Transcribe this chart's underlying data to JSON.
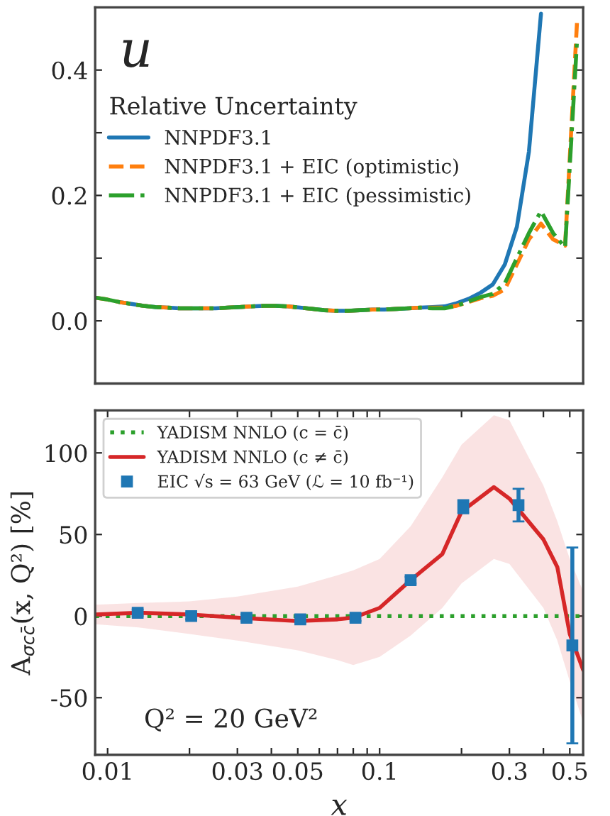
{
  "chart_data": [
    {
      "type": "line",
      "categories": [
        null,
        null,
        null,
        null,
        null,
        null,
        null,
        null,
        null,
        null,
        null,
        null,
        null,
        null,
        null,
        null,
        null,
        null,
        null,
        null,
        null,
        null,
        null,
        null,
        null,
        null,
        null,
        null,
        null,
        null,
        null,
        null,
        null,
        null,
        null,
        null,
        null,
        null,
        null,
        null,
        null
      ],
      "ylim": [
        -0.1,
        0.5
      ],
      "yticks": [
        {
          "value": 0,
          "label": "0.0"
        },
        {
          "value": 0.1,
          "label": null
        },
        0.2,
        {
          "value": 0.3,
          "label": null
        },
        0.4
      ],
      "tick_labels": "y",
      "legend": "top left",
      "legend_title": "Relative Uncertainty",
      "grid": false,
      "annotations": [
        "u"
      ],
      "series": [
        {
          "name": "NNPDF3.1",
          "color": "#1f77b4",
          "line_style": "solid",
          "values": [
            null,
            null,
            0.03,
            0.027,
            0.024,
            0.022,
            0.021,
            0.02,
            0.02,
            0.02,
            0.02,
            0.021,
            0.022,
            0.023,
            0.024,
            0.024,
            0.023,
            0.021,
            0.019,
            0.017,
            0.016,
            0.016,
            0.017,
            0.018,
            0.018,
            0.019,
            0.02,
            0.021,
            0.022,
            0.023,
            0.028,
            0.035,
            0.045,
            0.058,
            0.09,
            0.15,
            0.27,
            0.49,
            null,
            null,
            null
          ]
        },
        {
          "name": "NNPDF3.1 + EIC (optimistic)",
          "color": "#ff7f0e",
          "line_style": "dashed",
          "values": [
            0.037,
            0.034,
            0.03,
            0.027,
            0.024,
            0.022,
            0.021,
            0.02,
            0.02,
            0.02,
            0.02,
            0.021,
            0.022,
            0.023,
            0.024,
            0.024,
            0.023,
            0.021,
            0.019,
            0.017,
            0.016,
            0.016,
            0.017,
            0.018,
            0.018,
            0.019,
            0.02,
            0.021,
            0.021,
            0.021,
            0.024,
            0.03,
            0.036,
            0.04,
            0.05,
            0.09,
            0.13,
            0.155,
            0.13,
            0.12,
            0.48
          ]
        },
        {
          "name": "NNPDF3.1 + EIC (pessimistic)",
          "color": "#2ca02c",
          "line_style": "dashdot",
          "values": [
            0.037,
            0.034,
            0.03,
            0.027,
            0.024,
            0.022,
            0.021,
            0.02,
            0.02,
            0.02,
            0.02,
            0.021,
            0.022,
            0.023,
            0.024,
            0.024,
            0.023,
            0.021,
            0.019,
            0.017,
            0.016,
            0.016,
            0.017,
            0.018,
            0.018,
            0.019,
            0.02,
            0.021,
            0.02,
            0.02,
            0.024,
            0.031,
            0.038,
            0.043,
            0.06,
            0.1,
            0.14,
            0.175,
            0.14,
            0.117,
            0.45
          ]
        }
      ]
    },
    {
      "type": "line",
      "log": "x",
      "xlim": [
        0.009,
        0.56
      ],
      "ylim": [
        -85,
        126
      ],
      "xticks": [
        0.01,
        {
          "value": 0.02,
          "label": null
        },
        0.03,
        {
          "value": 0.04,
          "label": null
        },
        0.05,
        {
          "value": 0.06,
          "label": null
        },
        {
          "value": 0.07,
          "label": null
        },
        {
          "value": 0.08,
          "label": null
        },
        {
          "value": 0.09,
          "label": null
        },
        0.1,
        {
          "value": 0.2,
          "label": null
        },
        0.3,
        {
          "value": 0.4,
          "label": null
        },
        0.5
      ],
      "yticks": [
        -50,
        0,
        50,
        100
      ],
      "xlabel": "x",
      "ylabel": "A$_{σcc̄}$(x, Q²) [%]",
      "legend": "top left",
      "grid": false,
      "annotations": [
        "Q² = 20 GeV²"
      ],
      "series": [
        {
          "name": "YADISM NNLO (c = c̄)",
          "type": "line",
          "color": "#2ca02c",
          "line_style": "dotted",
          "x": [
            0.009,
            0.56
          ],
          "values": [
            0,
            0
          ]
        },
        {
          "name": "YADISM NNLO (c ≠ c̄)",
          "type": "line",
          "color": "#d62728",
          "line_style": "solid",
          "x": [
            0.009,
            0.013,
            0.02,
            0.03,
            0.05,
            0.07,
            0.08,
            0.1,
            0.13,
            0.17,
            0.2,
            0.263,
            0.3,
            0.4,
            0.45,
            0.5,
            0.56
          ],
          "values": [
            1,
            2,
            1,
            -1,
            -3,
            -2,
            -1,
            5,
            22,
            38,
            64,
            79,
            72,
            47,
            30,
            -11,
            -33
          ],
          "upper": [
            7,
            8,
            9,
            12,
            18,
            25,
            28,
            35,
            55,
            85,
            105,
            123,
            120,
            80,
            58,
            35,
            15
          ],
          "lower": [
            -5,
            -7,
            -11,
            -15,
            -21,
            -27,
            -30,
            -25,
            -12,
            5,
            20,
            35,
            32,
            5,
            -15,
            -40,
            -65
          ]
        },
        {
          "name": "EIC √s = 63 GeV (ℒ = 10 fb⁻¹)",
          "type": "scatter",
          "color": "#1f77b4",
          "marker": "square",
          "x": [
            0.0129,
            0.0203,
            0.0324,
            0.0511,
            0.0815,
            0.13,
            0.203,
            0.324,
            0.511
          ],
          "values": [
            2,
            0,
            -1,
            -2,
            -1,
            22,
            67,
            68,
            -18
          ],
          "errors": [
            2,
            2,
            2,
            2,
            2,
            2,
            4,
            10,
            60
          ]
        }
      ]
    }
  ]
}
